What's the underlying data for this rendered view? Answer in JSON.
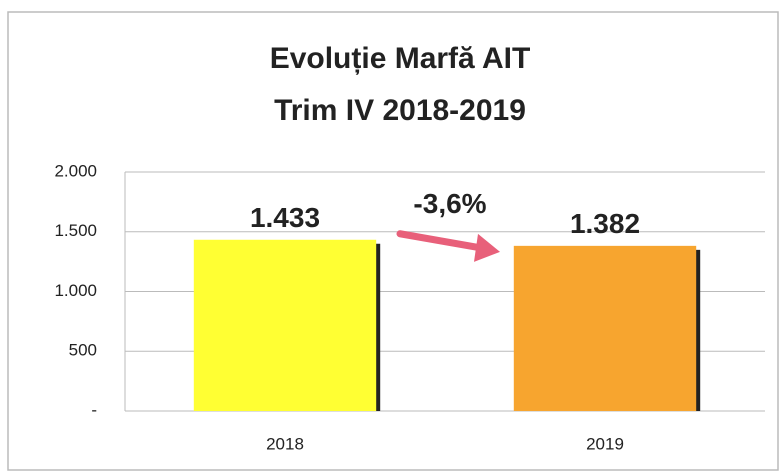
{
  "chart_data": {
    "type": "bar",
    "title": "Evoluție Marfă AIT",
    "subtitle": "Trim IV 2018-2019",
    "categories": [
      "2018",
      "2019"
    ],
    "values": [
      1433,
      1382
    ],
    "value_labels": [
      "1.433",
      "1.382"
    ],
    "colors": [
      "#ffff33",
      "#f7a52f"
    ],
    "annotation": "-3,6%",
    "annotation_color": "#e8607a",
    "ylim": [
      0,
      2000
    ],
    "yticks": [
      {
        "value": 0,
        "label": "-"
      },
      500,
      {
        "value": 1000,
        "label": "1.000"
      },
      {
        "value": 1500,
        "label": "1.500"
      },
      {
        "value": 2000,
        "label": "2.000"
      }
    ],
    "grid": true
  }
}
